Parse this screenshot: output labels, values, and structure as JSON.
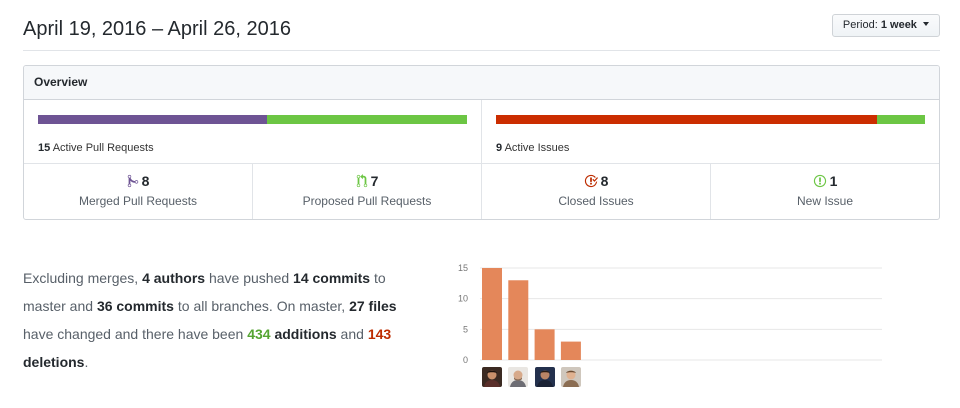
{
  "header": {
    "date_range": "April 19, 2016 – April 26, 2016",
    "period_label": "Period:",
    "period_value": "1 week"
  },
  "overview": {
    "title": "Overview",
    "pull_requests": {
      "count": "15",
      "label": "Active Pull Requests",
      "merged_fraction": 0.533,
      "proposed_fraction": 0.467
    },
    "issues": {
      "count": "9",
      "label": "Active Issues",
      "closed_fraction": 0.889,
      "new_fraction": 0.111
    },
    "stats": [
      {
        "icon": "git-merge-icon",
        "value": "8",
        "label": "Merged Pull Requests",
        "color": "#6e5494"
      },
      {
        "icon": "git-pull-request-icon",
        "value": "7",
        "label": "Proposed Pull Requests",
        "color": "#6cc644"
      },
      {
        "icon": "issue-closed-icon",
        "value": "8",
        "label": "Closed Issues",
        "color": "#bd2c00"
      },
      {
        "icon": "issue-opened-icon",
        "value": "1",
        "label": "New Issue",
        "color": "#6cc644"
      }
    ]
  },
  "summary": {
    "t1": "Excluding merges, ",
    "authors": "4 authors",
    "t2": " have pushed ",
    "commits_master": "14 commits",
    "t3": " to master and ",
    "commits_all": "36 commits",
    "t4": " to all branches. On master, ",
    "files": "27 files",
    "t5": " have changed and there have been ",
    "additions_num": "434",
    "additions_word": "additions",
    "t6": " and ",
    "deletions_num": "143",
    "deletions_word": "deletions",
    "t7": "."
  },
  "chart_data": {
    "type": "bar",
    "categories": [
      "author-1",
      "author-2",
      "author-3",
      "author-4"
    ],
    "values": [
      15,
      13,
      5,
      3
    ],
    "yticks": [
      "0",
      "5",
      "10",
      "15"
    ],
    "ylim": [
      0,
      15
    ],
    "title": "",
    "xlabel": "",
    "ylabel": "",
    "grid": true,
    "bar_color": "#e4875a"
  },
  "colors": {
    "merged": "#6e5494",
    "proposed": "#6cc644",
    "closed": "#cb2d00",
    "new": "#6cc644",
    "additions": "#55a532",
    "deletions": "#bd2c00"
  }
}
